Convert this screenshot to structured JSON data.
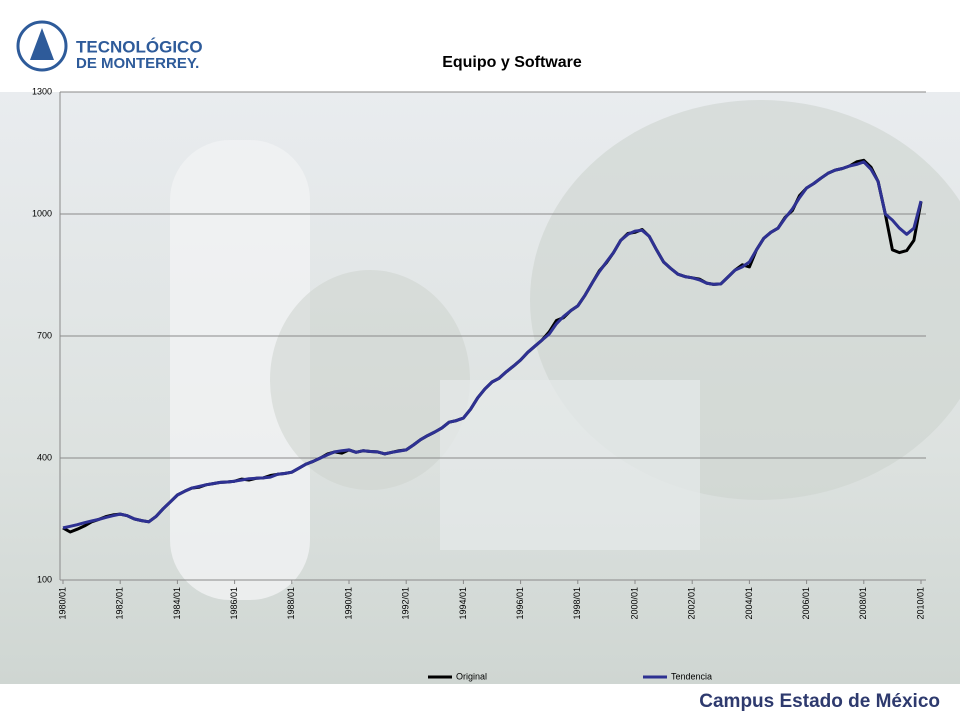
{
  "header": {
    "logo_line1": "TECNOLÓGICO",
    "logo_line2": "DE MONTERREY."
  },
  "footer": {
    "campus": "Campus Estado de México"
  },
  "chart_data": {
    "type": "line",
    "title": "Equipo y Software",
    "categories": [
      "1980/01",
      null,
      null,
      null,
      null,
      null,
      null,
      null,
      "1982/01",
      null,
      null,
      null,
      null,
      null,
      null,
      null,
      "1984/01",
      null,
      null,
      null,
      null,
      null,
      null,
      null,
      "1986/01",
      null,
      null,
      null,
      null,
      null,
      null,
      null,
      "1988/01",
      null,
      null,
      null,
      null,
      null,
      null,
      null,
      "1990/01",
      null,
      null,
      null,
      null,
      null,
      null,
      null,
      "1992/01",
      null,
      null,
      null,
      null,
      null,
      null,
      null,
      "1994/01",
      null,
      null,
      null,
      null,
      null,
      null,
      null,
      "1996/01",
      null,
      null,
      null,
      null,
      null,
      null,
      null,
      "1998/01",
      null,
      null,
      null,
      null,
      null,
      null,
      null,
      "2000/01",
      null,
      null,
      null,
      null,
      null,
      null,
      null,
      "2002/01",
      null,
      null,
      null,
      null,
      null,
      null,
      null,
      "2004/01",
      null,
      null,
      null,
      null,
      null,
      null,
      null,
      "2006/01",
      null,
      null,
      null,
      null,
      null,
      null,
      null,
      "2008/01",
      null,
      null,
      null,
      null,
      null,
      null,
      null,
      "2010/01"
    ],
    "series": [
      {
        "name": "Original",
        "color": "#000000",
        "values": [
          228,
          218,
          225,
          233,
          243,
          249,
          256,
          260,
          262,
          258,
          250,
          246,
          243,
          256,
          275,
          292,
          309,
          318,
          326,
          328,
          334,
          337,
          340,
          341,
          343,
          348,
          346,
          350,
          351,
          357,
          360,
          362,
          365,
          375,
          385,
          392,
          400,
          410,
          415,
          412,
          420,
          414,
          418,
          416,
          415,
          410,
          414,
          418,
          420,
          432,
          445,
          455,
          464,
          474,
          488,
          492,
          498,
          520,
          548,
          570,
          587,
          596,
          612,
          626,
          641,
          660,
          675,
          690,
          710,
          738,
          745,
          762,
          774,
          800,
          830,
          860,
          880,
          905,
          935,
          952,
          955,
          962,
          945,
          912,
          882,
          866,
          852,
          846,
          843,
          840,
          830,
          827,
          828,
          845,
          862,
          875,
          870,
          912,
          940,
          955,
          965,
          992,
          1008,
          1045,
          1064,
          1075,
          1088,
          1100,
          1108,
          1112,
          1118,
          1128,
          1132,
          1115,
          1080,
          1000,
          912,
          905,
          910,
          935,
          1030
        ]
      },
      {
        "name": "Tendencia",
        "color": "#2e3192",
        "values": [
          228,
          232,
          236,
          241,
          245,
          249,
          254,
          258,
          262,
          258,
          250,
          246,
          243,
          256,
          275,
          292,
          309,
          318,
          326,
          330,
          334,
          337,
          340,
          341,
          343,
          346,
          349,
          350,
          351,
          353,
          360,
          362,
          365,
          375,
          385,
          392,
          400,
          408,
          415,
          418,
          420,
          414,
          418,
          416,
          415,
          410,
          414,
          417,
          420,
          432,
          445,
          455,
          464,
          474,
          488,
          492,
          498,
          520,
          548,
          570,
          587,
          596,
          612,
          626,
          641,
          660,
          675,
          690,
          705,
          730,
          748,
          762,
          774,
          800,
          830,
          858,
          882,
          905,
          935,
          950,
          958,
          960,
          945,
          912,
          882,
          866,
          852,
          846,
          843,
          838,
          830,
          827,
          828,
          845,
          862,
          870,
          882,
          912,
          940,
          955,
          965,
          990,
          1012,
          1040,
          1064,
          1075,
          1088,
          1100,
          1108,
          1112,
          1118,
          1122,
          1128,
          1110,
          1080,
          1000,
          985,
          965,
          950,
          965,
          1032
        ]
      }
    ],
    "ylim": [
      100,
      1300
    ],
    "yticks": [
      100,
      400,
      700,
      1000,
      1300
    ],
    "grid": true,
    "legend": "bottom"
  }
}
